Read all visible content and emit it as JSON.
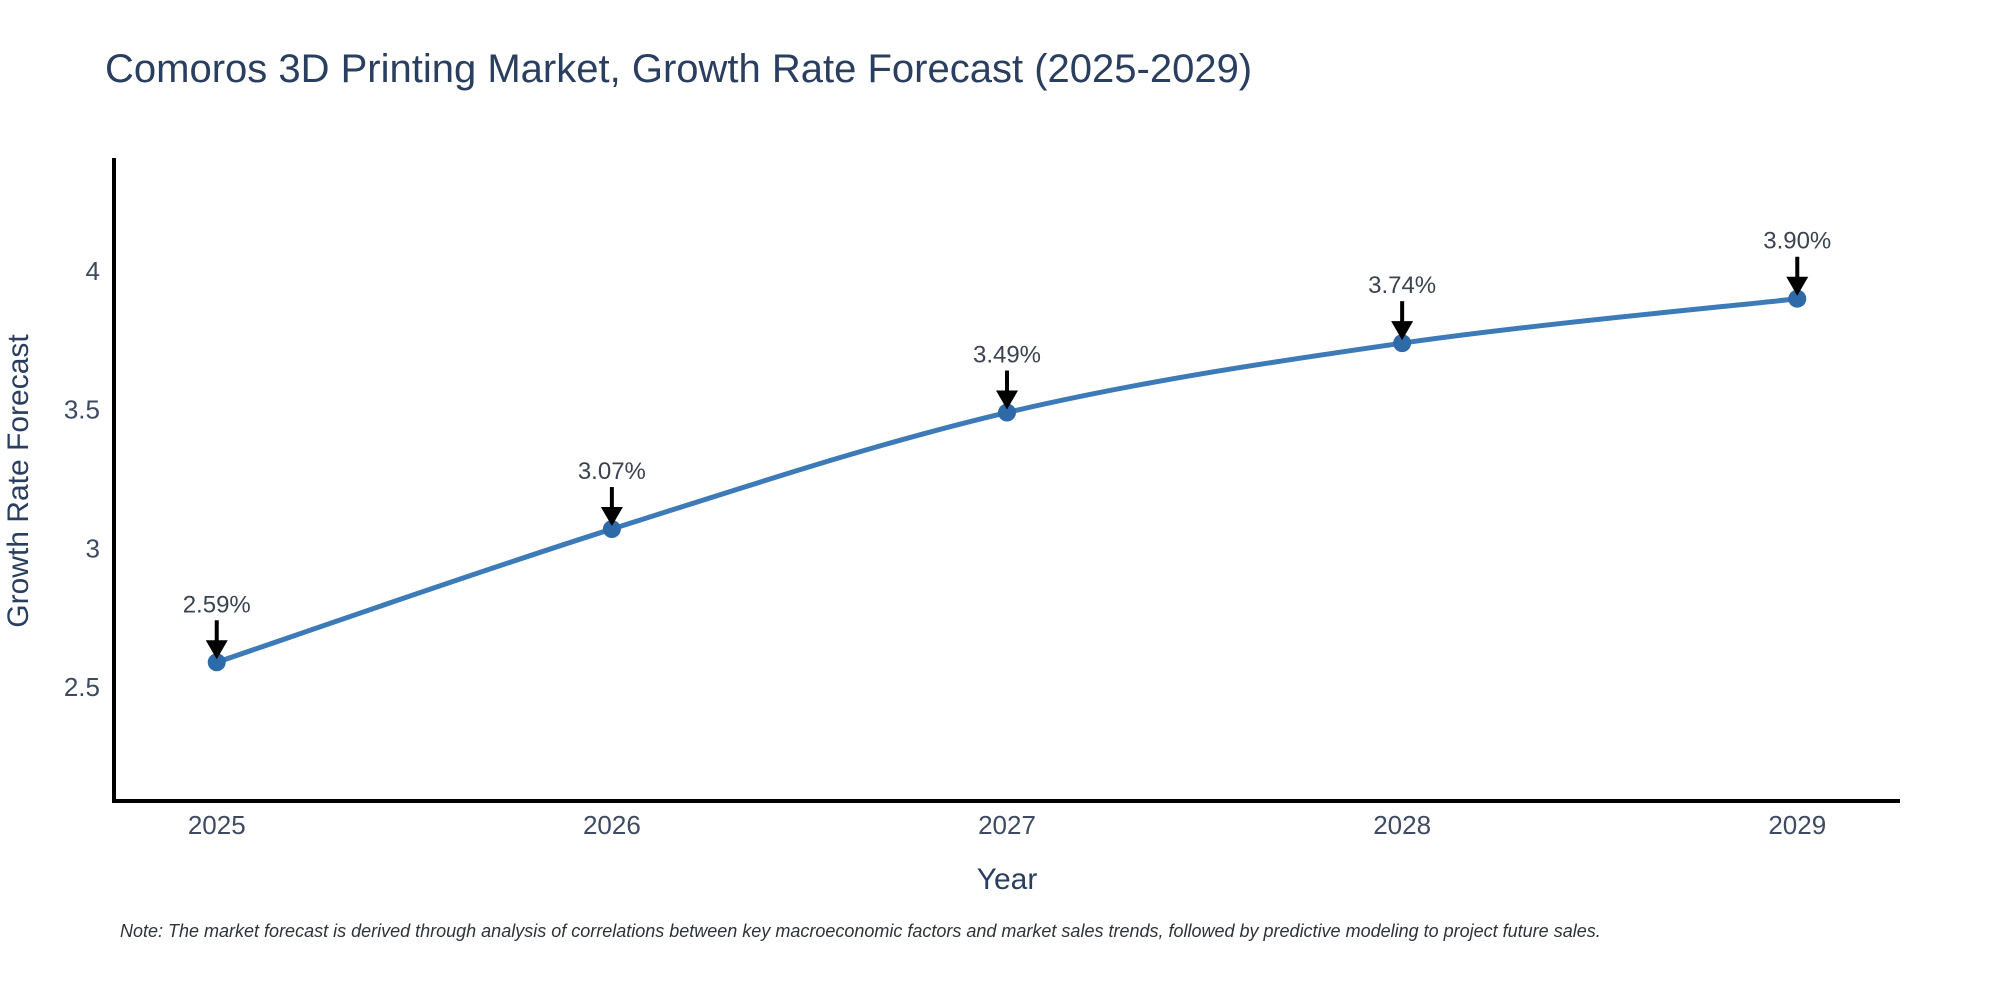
{
  "title": "Comoros 3D Printing Market, Growth Rate Forecast (2025-2029)",
  "note": "Note: The market forecast is derived through analysis of correlations between key macroeconomic factors and market sales trends, followed by predictive modeling to project future sales.",
  "chart_data": {
    "type": "line",
    "title": "Comoros 3D Printing Market, Growth Rate Forecast (2025-2029)",
    "xlabel": "Year",
    "ylabel": "Growth Rate Forecast",
    "x": [
      2025,
      2026,
      2027,
      2028,
      2029
    ],
    "values": [
      2.59,
      3.07,
      3.49,
      3.74,
      3.9
    ],
    "point_labels": [
      "2.59%",
      "3.07%",
      "3.49%",
      "3.74%",
      "3.90%"
    ],
    "xtick_labels": [
      "2025",
      "2026",
      "2027",
      "2028",
      "2029"
    ],
    "ytick_values": [
      2.5,
      3,
      3.5,
      4
    ],
    "ytick_labels": [
      "2.5",
      "3",
      "3.5",
      "4"
    ],
    "xlim": [
      2024.74,
      2029.26
    ],
    "ylim": [
      2.09,
      4.4
    ],
    "grid": false,
    "legend": null,
    "line_shape": "spline",
    "annotation_style": "label-above-with-down-arrow",
    "colors": {
      "line": "#3d7ab8",
      "marker": "#2e6aa8",
      "arrow": "#000000",
      "axis_line": "#000000",
      "title_text": "#2a3f5f",
      "tick_text": "#3e4a61",
      "annotation_text": "#3c4350",
      "note_text": "#2e3338",
      "background": "#ffffff"
    }
  }
}
